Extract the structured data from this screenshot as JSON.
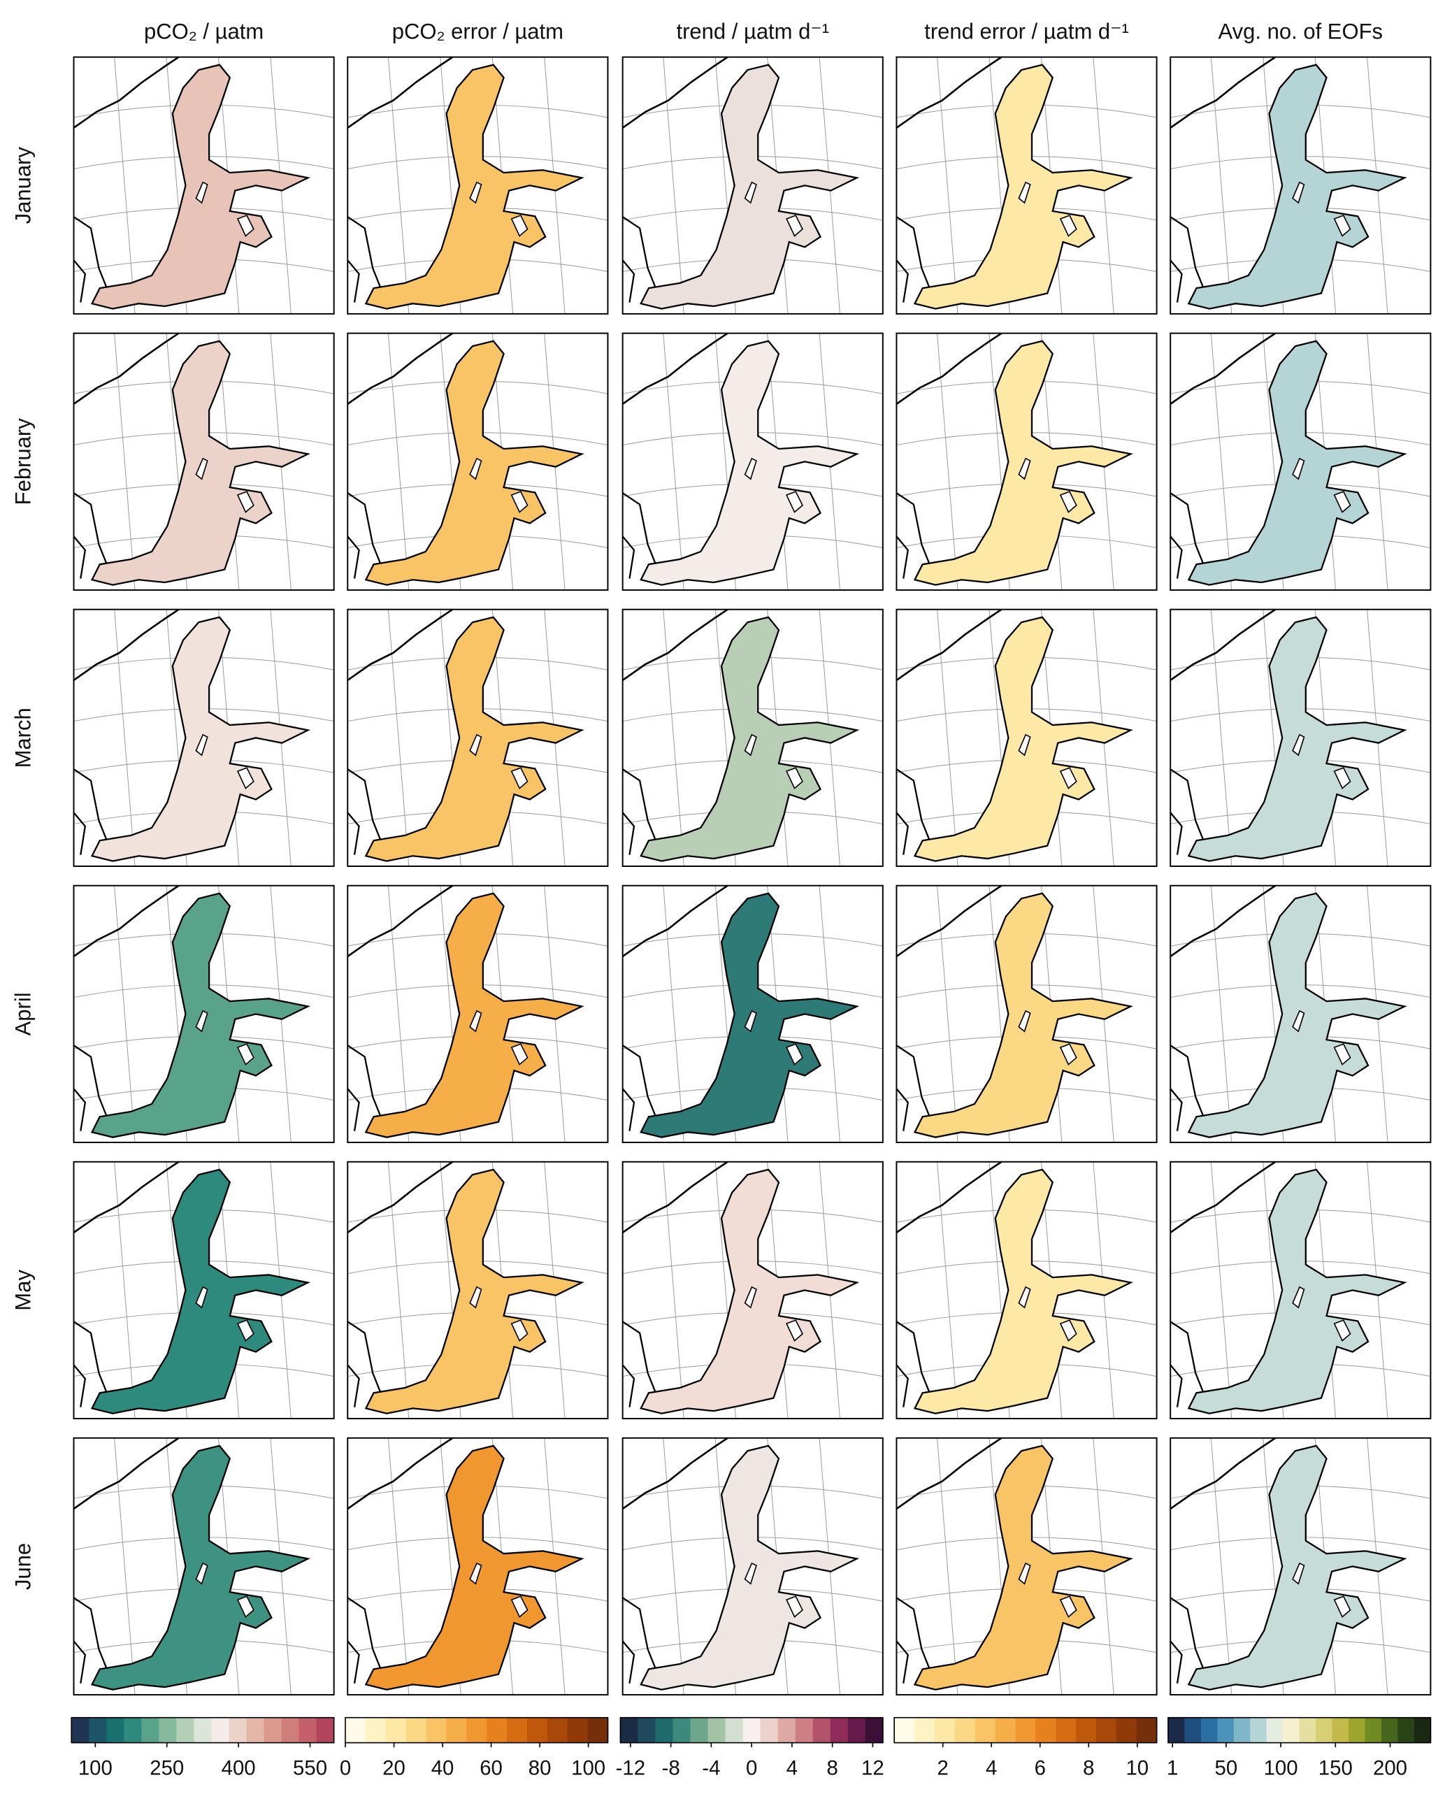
{
  "columns": [
    {
      "title": "pCO₂ / µatm",
      "colorbar": {
        "lim": [
          50,
          600
        ],
        "ticks": [
          100,
          250,
          400,
          550
        ],
        "colors": [
          "#1f3553",
          "#1d5566",
          "#19716f",
          "#2e8a7c",
          "#5aa38b",
          "#86ba9d",
          "#b3d0b6",
          "#dce6d8",
          "#f4ece8",
          "#ecd3c9",
          "#e3b6a8",
          "#d99a8b",
          "#cf7e79",
          "#c3606a",
          "#b2445b"
        ]
      }
    },
    {
      "title": "pCO₂ error / µatm",
      "colorbar": {
        "lim": [
          0,
          108
        ],
        "ticks": [
          0,
          20,
          40,
          60,
          80,
          100
        ],
        "colors": [
          "#fffbe6",
          "#fff3c6",
          "#fde8a6",
          "#fbd884",
          "#f8c465",
          "#f5ae48",
          "#f0982f",
          "#e6811d",
          "#d66c12",
          "#c0580c",
          "#a8480a",
          "#8f3a08",
          "#75300a"
        ]
      }
    },
    {
      "title": "trend / µatm d⁻¹",
      "colorbar": {
        "lim": [
          -13,
          13
        ],
        "ticks": [
          -12,
          -8,
          -4,
          0,
          4,
          8,
          12
        ],
        "colors": [
          "#1a2b44",
          "#1f4a5e",
          "#1e6a6c",
          "#3b8a7c",
          "#6da68c",
          "#a3c3a5",
          "#d3e0d1",
          "#f7f0ee",
          "#edd1cb",
          "#dfa9a3",
          "#cd7f83",
          "#b2536a",
          "#8f2c58",
          "#641a4a",
          "#3a1036"
        ]
      }
    },
    {
      "title": "trend error / µatm d⁻¹",
      "colorbar": {
        "lim": [
          0,
          10.8
        ],
        "ticks": [
          2,
          4,
          6,
          8,
          10
        ],
        "colors": [
          "#fffbe6",
          "#fff3c6",
          "#fde8a6",
          "#fbd884",
          "#f8c465",
          "#f5ae48",
          "#f0982f",
          "#e6811d",
          "#d66c12",
          "#c0580c",
          "#a8480a",
          "#8f3a08",
          "#75300a"
        ]
      }
    },
    {
      "title": "Avg. no. of EOFs",
      "colorbar": {
        "lim": [
          -3,
          237
        ],
        "ticks": [
          1,
          50,
          100,
          150,
          200
        ],
        "colors": [
          "#1c2a4a",
          "#1f4f7f",
          "#2a6fa2",
          "#4b93b8",
          "#7fb6c8",
          "#b5d4d6",
          "#e4eddf",
          "#f5f0cf",
          "#e6e0a0",
          "#d6cf74",
          "#c2bb4a",
          "#9ea52c",
          "#6f8b22",
          "#47661c",
          "#2b4417",
          "#1a2812"
        ]
      }
    }
  ],
  "rows": [
    "January",
    "February",
    "March",
    "April",
    "May",
    "June"
  ]
}
